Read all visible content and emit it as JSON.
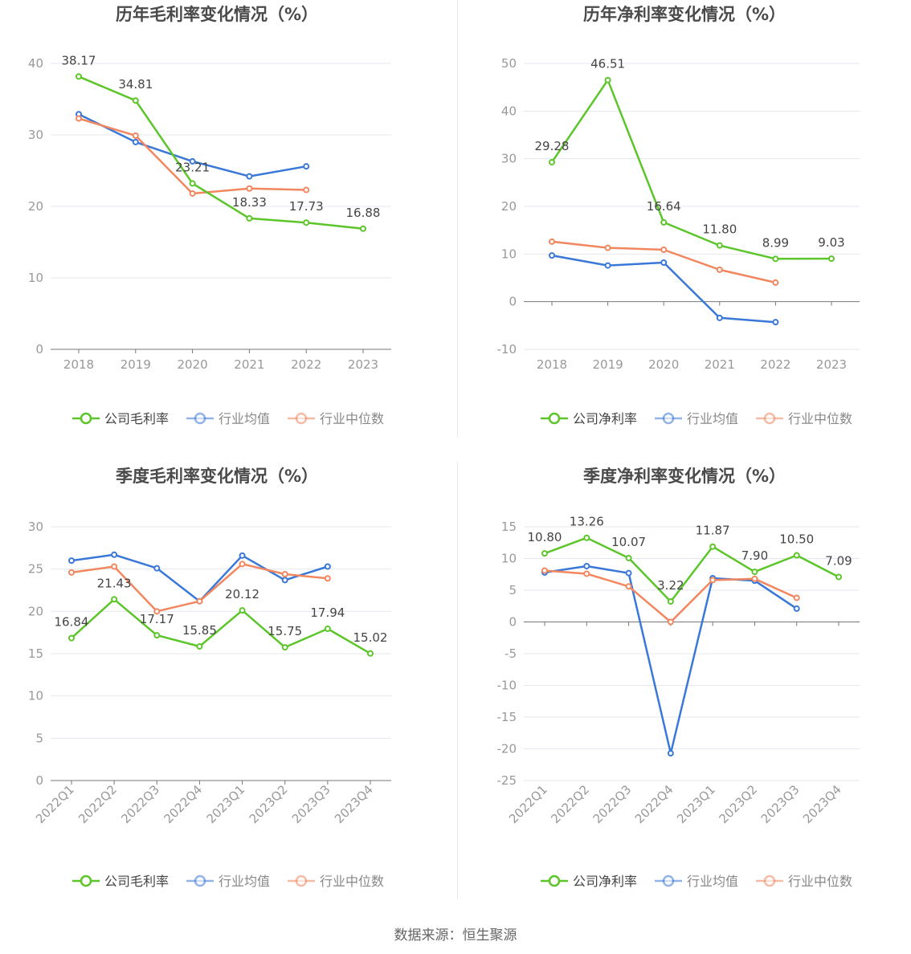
{
  "source": "数据来源：恒生聚源",
  "colors": {
    "company": "#5cc52a",
    "avg": "#3a78d8",
    "median": "#f2875f",
    "grid": "#e4e7ef",
    "axis": "#777777",
    "label": "#999999",
    "title": "#4a4a4a"
  },
  "chart_data": [
    {
      "id": "annual-gross",
      "type": "line",
      "title": "历年毛利率变化情况（%）",
      "categories": [
        "2018",
        "2019",
        "2020",
        "2021",
        "2022",
        "2023"
      ],
      "ylim": [
        0,
        40
      ],
      "yticks": [
        0,
        10,
        20,
        30,
        40
      ],
      "series": [
        {
          "key": "company",
          "name": "公司毛利率",
          "values": [
            38.17,
            34.81,
            23.21,
            18.33,
            17.73,
            16.88
          ],
          "labels": [
            "38.17",
            "34.81",
            "23.21",
            "18.33",
            "17.73",
            "16.88"
          ]
        },
        {
          "key": "avg",
          "name": "行业均值",
          "values": [
            32.9,
            29.0,
            26.3,
            24.2,
            25.6,
            null
          ]
        },
        {
          "key": "median",
          "name": "行业中位数",
          "values": [
            32.3,
            29.9,
            21.8,
            22.5,
            22.3,
            null
          ]
        }
      ]
    },
    {
      "id": "annual-net",
      "type": "line",
      "title": "历年净利率变化情况（%）",
      "categories": [
        "2018",
        "2019",
        "2020",
        "2021",
        "2022",
        "2023"
      ],
      "ylim": [
        -10,
        50
      ],
      "yticks": [
        -10,
        0,
        10,
        20,
        30,
        40,
        50
      ],
      "series": [
        {
          "key": "company",
          "name": "公司净利率",
          "values": [
            29.28,
            46.51,
            16.64,
            11.8,
            8.99,
            9.03
          ],
          "labels": [
            "29.28",
            "46.51",
            "16.64",
            "11.80",
            "8.99",
            "9.03"
          ]
        },
        {
          "key": "avg",
          "name": "行业均值",
          "values": [
            9.7,
            7.6,
            8.2,
            -3.4,
            -4.3,
            null
          ]
        },
        {
          "key": "median",
          "name": "行业中位数",
          "values": [
            12.6,
            11.3,
            10.9,
            6.7,
            4.0,
            null
          ]
        }
      ]
    },
    {
      "id": "quarterly-gross",
      "type": "line",
      "title": "季度毛利率变化情况（%）",
      "categories": [
        "2022Q1",
        "2022Q2",
        "2022Q3",
        "2022Q4",
        "2023Q1",
        "2023Q2",
        "2023Q3",
        "2023Q4"
      ],
      "ylim": [
        0,
        30
      ],
      "yticks": [
        0,
        5,
        10,
        15,
        20,
        25,
        30
      ],
      "series": [
        {
          "key": "company",
          "name": "公司毛利率",
          "values": [
            16.84,
            21.43,
            17.17,
            15.85,
            20.12,
            15.75,
            17.94,
            15.02
          ],
          "labels": [
            "16.84",
            "21.43",
            "17.17",
            "15.85",
            "20.12",
            "15.75",
            "17.94",
            "15.02"
          ]
        },
        {
          "key": "avg",
          "name": "行业均值",
          "values": [
            26.0,
            26.7,
            25.1,
            21.2,
            26.6,
            23.7,
            25.3,
            null
          ]
        },
        {
          "key": "median",
          "name": "行业中位数",
          "values": [
            24.6,
            25.3,
            20.0,
            21.2,
            25.6,
            24.4,
            23.9,
            null
          ]
        }
      ]
    },
    {
      "id": "quarterly-net",
      "type": "line",
      "title": "季度净利率变化情况（%）",
      "categories": [
        "2022Q1",
        "2022Q2",
        "2022Q3",
        "2022Q4",
        "2023Q1",
        "2023Q2",
        "2023Q3",
        "2023Q4"
      ],
      "ylim": [
        -25,
        15
      ],
      "yticks": [
        -25,
        -20,
        -15,
        -10,
        -5,
        0,
        5,
        10,
        15
      ],
      "series": [
        {
          "key": "company",
          "name": "公司净利率",
          "values": [
            10.8,
            13.26,
            10.07,
            3.22,
            11.87,
            7.9,
            10.5,
            7.09
          ],
          "labels": [
            "10.80",
            "13.26",
            "10.07",
            "3.22",
            "11.87",
            "7.90",
            "10.50",
            "7.09"
          ]
        },
        {
          "key": "avg",
          "name": "行业均值",
          "values": [
            7.8,
            8.8,
            7.7,
            -20.7,
            6.9,
            6.5,
            2.1,
            null
          ]
        },
        {
          "key": "median",
          "name": "行业中位数",
          "values": [
            8.1,
            7.6,
            5.6,
            0.0,
            6.6,
            6.8,
            3.8,
            null
          ]
        }
      ]
    }
  ]
}
